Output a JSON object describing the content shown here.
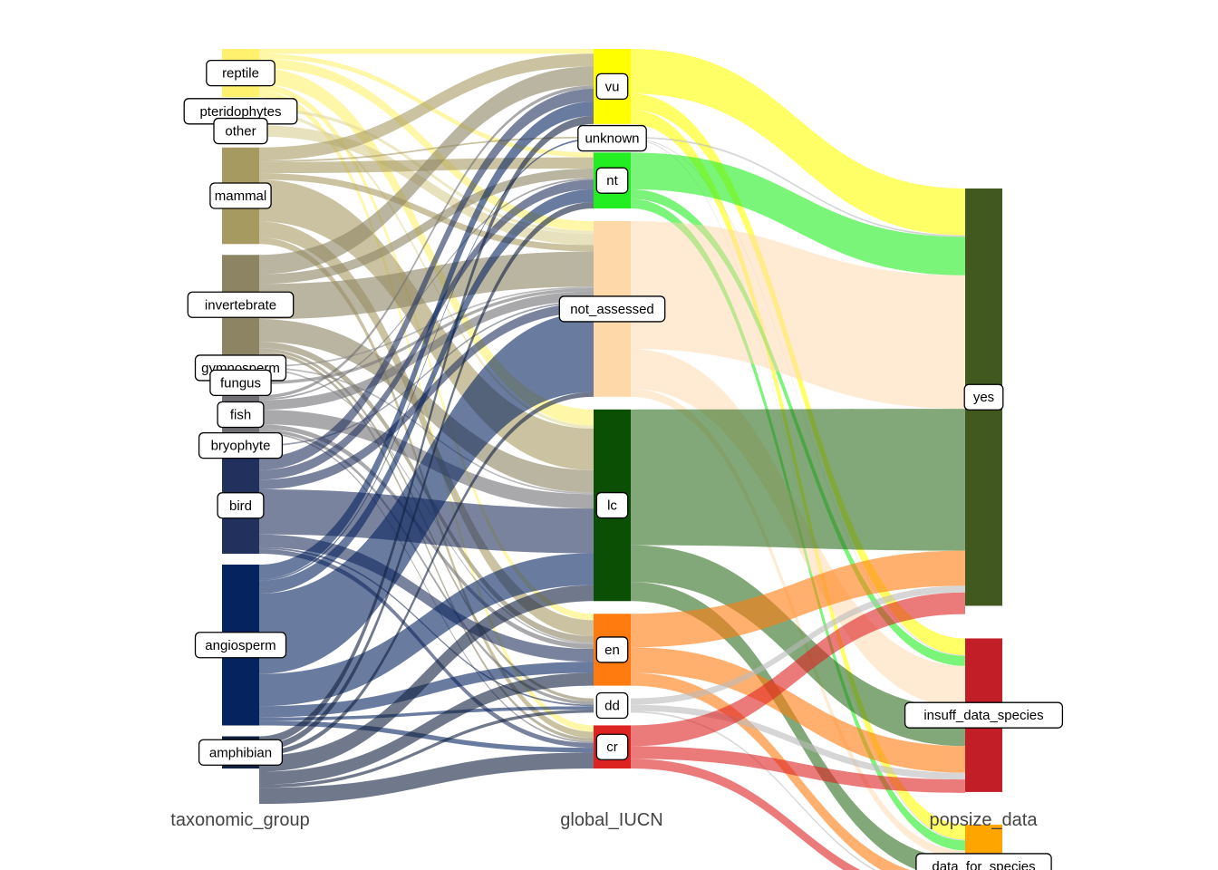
{
  "chart_data": {
    "type": "alluvial",
    "title": "",
    "axes": [
      "taxonomic_group",
      "global_IUCN",
      "popsize_data"
    ],
    "colors": {
      "reptile": "#fff16e",
      "pteridophytes": "#e3da9b",
      "other": "#d8cd92",
      "mammal": "#a79a61",
      "invertebrate": "#8c8462",
      "gymnosperm": "#8c8c8c",
      "fungus": "#777777",
      "fish": "#6f6f74",
      "bryophyte": "#5a5f78",
      "bird": "#22305d",
      "angiosperm": "#05235f",
      "amphibian": "#102040",
      "vu": "#ffff00",
      "unknown": "#ffffff",
      "nt": "#22ee22",
      "not_assessed": "#ffd8aa",
      "lc": "#0b4f05",
      "en": "#ff7b0f",
      "dd": "#ffffff",
      "cr": "#dd2222",
      "yes": "#41581f",
      "insuff_data_species": "#c11e27",
      "data_for_species": "#ffa500"
    },
    "nodes": [
      {
        "axis": 0,
        "name": "reptile",
        "value": 3
      },
      {
        "axis": 0,
        "name": "pteridophytes",
        "value": 0.4
      },
      {
        "axis": 0,
        "name": "other",
        "value": 0.7
      },
      {
        "axis": 0,
        "name": "mammal",
        "value": 6
      },
      {
        "axis": 0,
        "name": "invertebrate",
        "value": 6.2
      },
      {
        "axis": 0,
        "name": "gymnosperm",
        "value": 0.3
      },
      {
        "axis": 0,
        "name": "fungus",
        "value": 0.2
      },
      {
        "axis": 0,
        "name": "fish",
        "value": 2.4
      },
      {
        "axis": 0,
        "name": "bryophyte",
        "value": 0.1
      },
      {
        "axis": 0,
        "name": "bird",
        "value": 6
      },
      {
        "axis": 0,
        "name": "angiosperm",
        "value": 10
      },
      {
        "axis": 0,
        "name": "amphibian",
        "value": 2
      },
      {
        "axis": 1,
        "name": "vu",
        "value": 4.7
      },
      {
        "axis": 1,
        "name": "unknown",
        "value": 0.2
      },
      {
        "axis": 1,
        "name": "nt",
        "value": 3.5
      },
      {
        "axis": 1,
        "name": "not_assessed",
        "value": 11
      },
      {
        "axis": 1,
        "name": "lc",
        "value": 12
      },
      {
        "axis": 1,
        "name": "en",
        "value": 4.5
      },
      {
        "axis": 1,
        "name": "dd",
        "value": 0.9
      },
      {
        "axis": 1,
        "name": "cr",
        "value": 2.7
      },
      {
        "axis": 2,
        "name": "yes",
        "value": 25
      },
      {
        "axis": 2,
        "name": "insuff_data_species",
        "value": 9.2
      },
      {
        "axis": 2,
        "name": "data_for_species",
        "value": 5
      }
    ],
    "flows": [
      {
        "tax": "reptile",
        "iucn": "vu",
        "value": 0.3
      },
      {
        "tax": "reptile",
        "iucn": "nt",
        "value": 0.3
      },
      {
        "tax": "reptile",
        "iucn": "not_assessed",
        "value": 0.6
      },
      {
        "tax": "reptile",
        "iucn": "lc",
        "value": 1.0
      },
      {
        "tax": "reptile",
        "iucn": "en",
        "value": 0.4
      },
      {
        "tax": "reptile",
        "iucn": "cr",
        "value": 0.4
      },
      {
        "tax": "pteridophytes",
        "iucn": "not_assessed",
        "value": 0.2
      },
      {
        "tax": "pteridophytes",
        "iucn": "lc",
        "value": 0.2
      },
      {
        "tax": "other",
        "iucn": "not_assessed",
        "value": 0.7
      },
      {
        "tax": "mammal",
        "iucn": "vu",
        "value": 0.8
      },
      {
        "tax": "mammal",
        "iucn": "unknown",
        "value": 0.1
      },
      {
        "tax": "mammal",
        "iucn": "nt",
        "value": 0.7
      },
      {
        "tax": "mammal",
        "iucn": "not_assessed",
        "value": 0.4
      },
      {
        "tax": "mammal",
        "iucn": "lc",
        "value": 2.6
      },
      {
        "tax": "mammal",
        "iucn": "en",
        "value": 1.0
      },
      {
        "tax": "mammal",
        "iucn": "cr",
        "value": 0.4
      },
      {
        "tax": "invertebrate",
        "iucn": "vu",
        "value": 1.2
      },
      {
        "tax": "invertebrate",
        "iucn": "nt",
        "value": 0.6
      },
      {
        "tax": "invertebrate",
        "iucn": "not_assessed",
        "value": 2.2
      },
      {
        "tax": "invertebrate",
        "iucn": "lc",
        "value": 1.4
      },
      {
        "tax": "invertebrate",
        "iucn": "en",
        "value": 0.4
      },
      {
        "tax": "invertebrate",
        "iucn": "dd",
        "value": 0.2
      },
      {
        "tax": "invertebrate",
        "iucn": "cr",
        "value": 0.2
      },
      {
        "tax": "gymnosperm",
        "iucn": "not_assessed",
        "value": 0.1
      },
      {
        "tax": "gymnosperm",
        "iucn": "lc",
        "value": 0.1
      },
      {
        "tax": "gymnosperm",
        "iucn": "en",
        "value": 0.1
      },
      {
        "tax": "fungus",
        "iucn": "not_assessed",
        "value": 0.2
      },
      {
        "tax": "fish",
        "iucn": "vu",
        "value": 0.2
      },
      {
        "tax": "fish",
        "iucn": "nt",
        "value": 0.1
      },
      {
        "tax": "fish",
        "iucn": "not_assessed",
        "value": 0.6
      },
      {
        "tax": "fish",
        "iucn": "lc",
        "value": 0.9
      },
      {
        "tax": "fish",
        "iucn": "en",
        "value": 0.3
      },
      {
        "tax": "fish",
        "iucn": "dd",
        "value": 0.2
      },
      {
        "tax": "fish",
        "iucn": "cr",
        "value": 0.1
      },
      {
        "tax": "bryophyte",
        "iucn": "not_assessed",
        "value": 0.1
      },
      {
        "tax": "bird",
        "iucn": "vu",
        "value": 0.8
      },
      {
        "tax": "bird",
        "iucn": "nt",
        "value": 0.6
      },
      {
        "tax": "bird",
        "iucn": "not_assessed",
        "value": 0.6
      },
      {
        "tax": "bird",
        "iucn": "lc",
        "value": 2.8
      },
      {
        "tax": "bird",
        "iucn": "en",
        "value": 0.8
      },
      {
        "tax": "bird",
        "iucn": "dd",
        "value": 0.1
      },
      {
        "tax": "bird",
        "iucn": "cr",
        "value": 0.3
      },
      {
        "tax": "angiosperm",
        "iucn": "vu",
        "value": 0.9
      },
      {
        "tax": "angiosperm",
        "iucn": "unknown",
        "value": 0.1
      },
      {
        "tax": "angiosperm",
        "iucn": "nt",
        "value": 0.8
      },
      {
        "tax": "angiosperm",
        "iucn": "not_assessed",
        "value": 5.0
      },
      {
        "tax": "angiosperm",
        "iucn": "lc",
        "value": 2.0
      },
      {
        "tax": "angiosperm",
        "iucn": "en",
        "value": 0.7
      },
      {
        "tax": "angiosperm",
        "iucn": "dd",
        "value": 0.2
      },
      {
        "tax": "angiosperm",
        "iucn": "cr",
        "value": 0.3
      },
      {
        "tax": "amphibian",
        "iucn": "vu",
        "value": 0.5
      },
      {
        "tax": "amphibian",
        "iucn": "nt",
        "value": 0.4
      },
      {
        "tax": "amphibian",
        "iucn": "not_assessed",
        "value": 0.3
      },
      {
        "tax": "amphibian",
        "iucn": "lc",
        "value": 1.0
      },
      {
        "tax": "amphibian",
        "iucn": "en",
        "value": 0.8
      },
      {
        "tax": "amphibian",
        "iucn": "dd",
        "value": 0.2
      },
      {
        "tax": "amphibian",
        "iucn": "cr",
        "value": 1.0
      },
      {
        "iucn": "vu",
        "pop": "yes",
        "value": 2.8
      },
      {
        "iucn": "vu",
        "pop": "insuff_data_species",
        "value": 1.0
      },
      {
        "iucn": "vu",
        "pop": "data_for_species",
        "value": 0.9
      },
      {
        "iucn": "unknown",
        "pop": "yes",
        "value": 0.1
      },
      {
        "iucn": "unknown",
        "pop": "insuff_data_species",
        "value": 0.05
      },
      {
        "iucn": "unknown",
        "pop": "data_for_species",
        "value": 0.05
      },
      {
        "iucn": "nt",
        "pop": "yes",
        "value": 2.3
      },
      {
        "iucn": "nt",
        "pop": "insuff_data_species",
        "value": 0.6
      },
      {
        "iucn": "nt",
        "pop": "data_for_species",
        "value": 0.6
      },
      {
        "iucn": "not_assessed",
        "pop": "yes",
        "value": 8.0
      },
      {
        "iucn": "not_assessed",
        "pop": "insuff_data_species",
        "value": 2.5
      },
      {
        "iucn": "not_assessed",
        "pop": "data_for_species",
        "value": 0.5
      },
      {
        "iucn": "lc",
        "pop": "yes",
        "value": 8.5
      },
      {
        "iucn": "lc",
        "pop": "insuff_data_species",
        "value": 2.3
      },
      {
        "iucn": "lc",
        "pop": "data_for_species",
        "value": 1.2
      },
      {
        "iucn": "en",
        "pop": "yes",
        "value": 2.1
      },
      {
        "iucn": "en",
        "pop": "insuff_data_species",
        "value": 1.6
      },
      {
        "iucn": "en",
        "pop": "data_for_species",
        "value": 0.8
      },
      {
        "iucn": "dd",
        "pop": "yes",
        "value": 0.4
      },
      {
        "iucn": "dd",
        "pop": "insuff_data_species",
        "value": 0.4
      },
      {
        "iucn": "dd",
        "pop": "data_for_species",
        "value": 0.1
      },
      {
        "iucn": "cr",
        "pop": "yes",
        "value": 1.3
      },
      {
        "iucn": "cr",
        "pop": "insuff_data_species",
        "value": 0.8
      },
      {
        "iucn": "cr",
        "pop": "data_for_species",
        "value": 0.6
      }
    ]
  }
}
